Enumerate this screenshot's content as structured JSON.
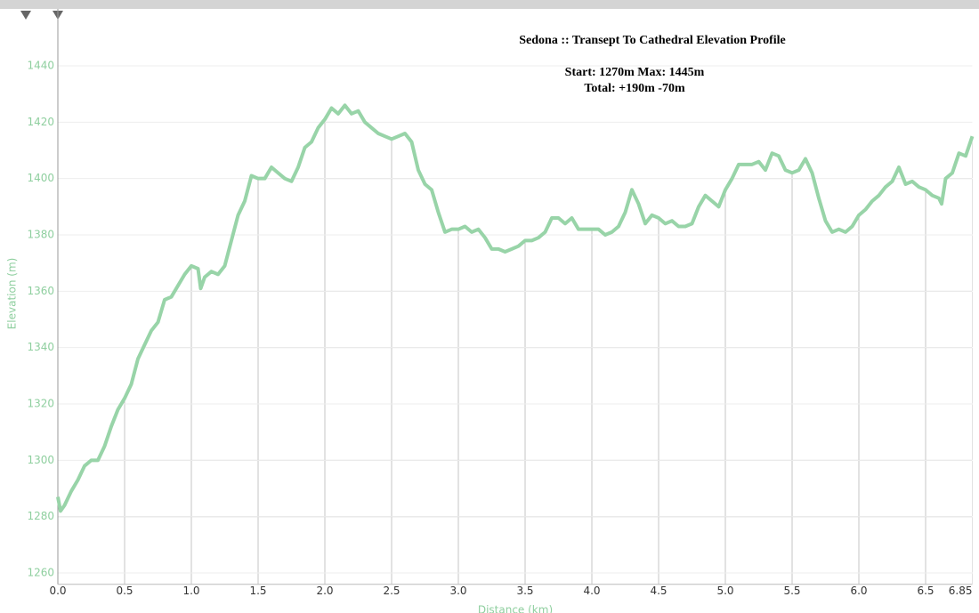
{
  "chart_data": {
    "type": "line",
    "title": "Sedona :: Transept To Cathedral Elevation Profile",
    "subtitle": [
      "Start: 1270m  Max: 1445m",
      "Total:  +190m  -70m"
    ],
    "xlabel": "Distance (km)",
    "ylabel": "Elevation (m)",
    "x": [
      0,
      0.02,
      0.05,
      0.1,
      0.15,
      0.2,
      0.25,
      0.3,
      0.35,
      0.4,
      0.45,
      0.5,
      0.55,
      0.6,
      0.65,
      0.7,
      0.75,
      0.8,
      0.85,
      0.9,
      0.95,
      1.0,
      1.05,
      1.07,
      1.1,
      1.15,
      1.2,
      1.25,
      1.3,
      1.35,
      1.4,
      1.45,
      1.5,
      1.55,
      1.6,
      1.65,
      1.7,
      1.75,
      1.8,
      1.85,
      1.9,
      1.95,
      2.0,
      2.05,
      2.1,
      2.15,
      2.2,
      2.25,
      2.3,
      2.35,
      2.4,
      2.45,
      2.5,
      2.55,
      2.6,
      2.65,
      2.7,
      2.75,
      2.8,
      2.85,
      2.9,
      2.95,
      3.0,
      3.05,
      3.1,
      3.15,
      3.2,
      3.25,
      3.3,
      3.35,
      3.4,
      3.45,
      3.5,
      3.55,
      3.6,
      3.65,
      3.7,
      3.75,
      3.8,
      3.85,
      3.9,
      3.95,
      4.0,
      4.05,
      4.1,
      4.15,
      4.2,
      4.25,
      4.3,
      4.35,
      4.4,
      4.45,
      4.5,
      4.55,
      4.6,
      4.65,
      4.7,
      4.75,
      4.8,
      4.85,
      4.9,
      4.95,
      5.0,
      5.05,
      5.1,
      5.15,
      5.2,
      5.25,
      5.3,
      5.35,
      5.4,
      5.45,
      5.5,
      5.55,
      5.6,
      5.65,
      5.7,
      5.75,
      5.8,
      5.85,
      5.9,
      5.95,
      6.0,
      6.05,
      6.1,
      6.15,
      6.2,
      6.25,
      6.3,
      6.35,
      6.4,
      6.45,
      6.5,
      6.55,
      6.6,
      6.62,
      6.65,
      6.7,
      6.75,
      6.8,
      6.85
    ],
    "values": [
      1287,
      1282,
      1284,
      1289,
      1293,
      1298,
      1300,
      1300,
      1305,
      1312,
      1318,
      1322,
      1327,
      1336,
      1341,
      1346,
      1349,
      1357,
      1358,
      1362,
      1366,
      1369,
      1368,
      1361,
      1365,
      1367,
      1366,
      1369,
      1378,
      1387,
      1392,
      1401,
      1400,
      1400,
      1404,
      1402,
      1400,
      1399,
      1404,
      1411,
      1413,
      1418,
      1421,
      1425,
      1423,
      1426,
      1423,
      1424,
      1420,
      1418,
      1416,
      1415,
      1414,
      1415,
      1416,
      1413,
      1403,
      1398,
      1396,
      1388,
      1381,
      1382,
      1382,
      1383,
      1381,
      1382,
      1379,
      1375,
      1375,
      1374,
      1375,
      1376,
      1378,
      1378,
      1379,
      1381,
      1386,
      1386,
      1384,
      1386,
      1382,
      1382,
      1382,
      1382,
      1380,
      1381,
      1383,
      1388,
      1396,
      1391,
      1384,
      1387,
      1386,
      1384,
      1385,
      1383,
      1383,
      1384,
      1390,
      1394,
      1392,
      1390,
      1396,
      1400,
      1405,
      1405,
      1405,
      1406,
      1403,
      1409,
      1408,
      1403,
      1402,
      1403,
      1407,
      1402,
      1393,
      1385,
      1381,
      1382,
      1381,
      1383,
      1387,
      1389,
      1392,
      1394,
      1397,
      1399,
      1404,
      1398,
      1399,
      1397,
      1396,
      1394,
      1393,
      1391,
      1400,
      1402,
      1409,
      1408,
      1415
    ],
    "color": "#98d4a8",
    "xlim": [
      0,
      6.85
    ],
    "xticks": [
      {
        "value": 0,
        "label": "0.0"
      },
      0.5,
      {
        "value": 1,
        "label": "1.0"
      },
      1.5,
      {
        "value": 2,
        "label": "2.0"
      },
      2.5,
      {
        "value": 3,
        "label": "3.0"
      },
      3.5,
      {
        "value": 4,
        "label": "4.0"
      },
      4.5,
      {
        "value": 5,
        "label": "5.0"
      },
      5.5,
      {
        "value": 6,
        "label": "6.0"
      },
      6.5,
      6.85
    ],
    "ylim": [
      1256,
      1455
    ],
    "yticks": [
      1260,
      1280,
      1300,
      1320,
      1340,
      1360,
      1380,
      1400,
      1420,
      1440
    ],
    "grid": true
  }
}
